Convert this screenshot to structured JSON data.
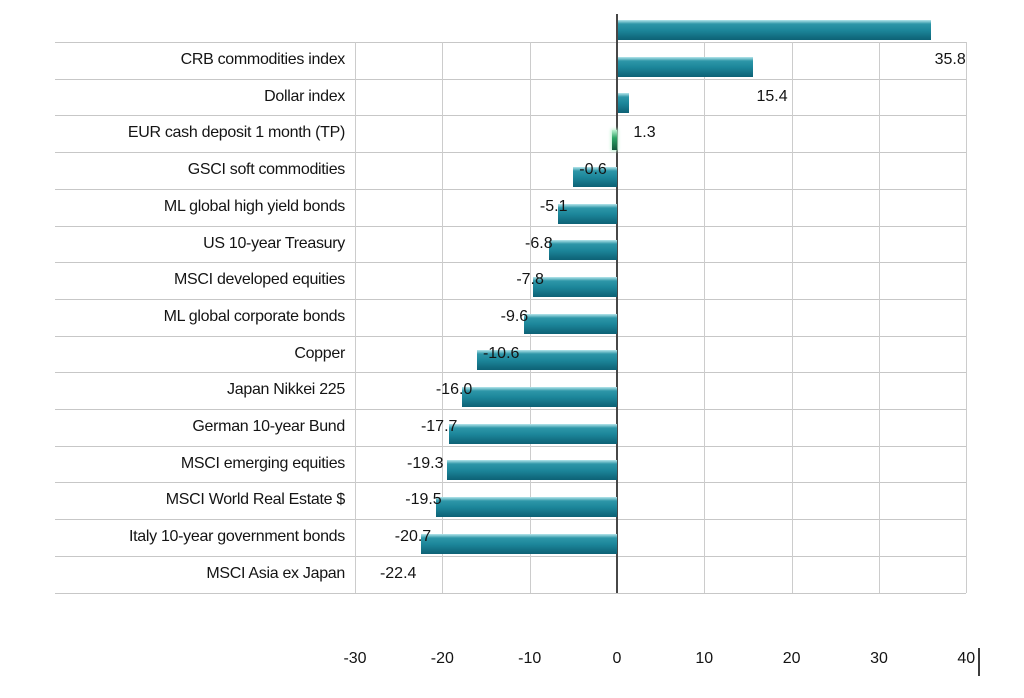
{
  "chart_data": {
    "type": "bar",
    "orientation": "horizontal",
    "title": "",
    "categories": [
      "CRB commodities index",
      "Dollar index",
      "EUR cash deposit 1 month (TP)",
      "GSCI soft commodities",
      "ML global high yield bonds",
      "US 10-year Treasury",
      "MSCI developed equities",
      "ML global corporate bonds",
      "Copper",
      "Japan Nikkei 225",
      "German 10-year Bund",
      "MSCI emerging equities",
      "MSCI World Real Estate $",
      "Italy 10-year government bonds",
      "MSCI Asia ex Japan"
    ],
    "values": [
      35.8,
      15.4,
      1.3,
      -0.6,
      -5.1,
      -6.8,
      -7.8,
      -9.6,
      -10.6,
      -16.0,
      -17.7,
      -19.3,
      -19.5,
      -20.7,
      -22.4
    ],
    "value_labels": [
      "35.8",
      "15.4",
      "1.3",
      "-0.6",
      "-5.1",
      "-6.8",
      "-7.8",
      "-9.6",
      "-10.6",
      "-16.0",
      "-17.7",
      "-19.3",
      "-19.5",
      "-20.7",
      "-22.4"
    ],
    "bar_styles": [
      "teal",
      "teal",
      "teal",
      "green",
      "teal",
      "teal",
      "teal",
      "teal",
      "teal",
      "teal",
      "teal",
      "teal",
      "teal",
      "teal",
      "teal"
    ],
    "x_tick_labels": [
      "-30",
      "-20",
      "-10",
      "0",
      "10",
      "20",
      "30",
      "40"
    ],
    "x_tick_values": [
      -30,
      -20,
      -10,
      0,
      10,
      20,
      30,
      40
    ],
    "xlim": [
      -30,
      40
    ],
    "grid": true,
    "legend": false,
    "ylabel": "",
    "xlabel": ""
  },
  "colors": {
    "background": "#ffffff",
    "bar_teal_top": "#b5e6ec",
    "bar_teal_upper": "#2d96a8",
    "bar_teal_mid": "#1d879b",
    "bar_teal_bottom": "#0d6175",
    "bar_green_top": "#b9f2cf",
    "bar_green_mid": "#2ca465",
    "bar_green_bottom": "#11573a",
    "gridline": "#cccccc",
    "row_line": "#c7c7c7",
    "zero_line": "#474747",
    "text": "#141414"
  }
}
